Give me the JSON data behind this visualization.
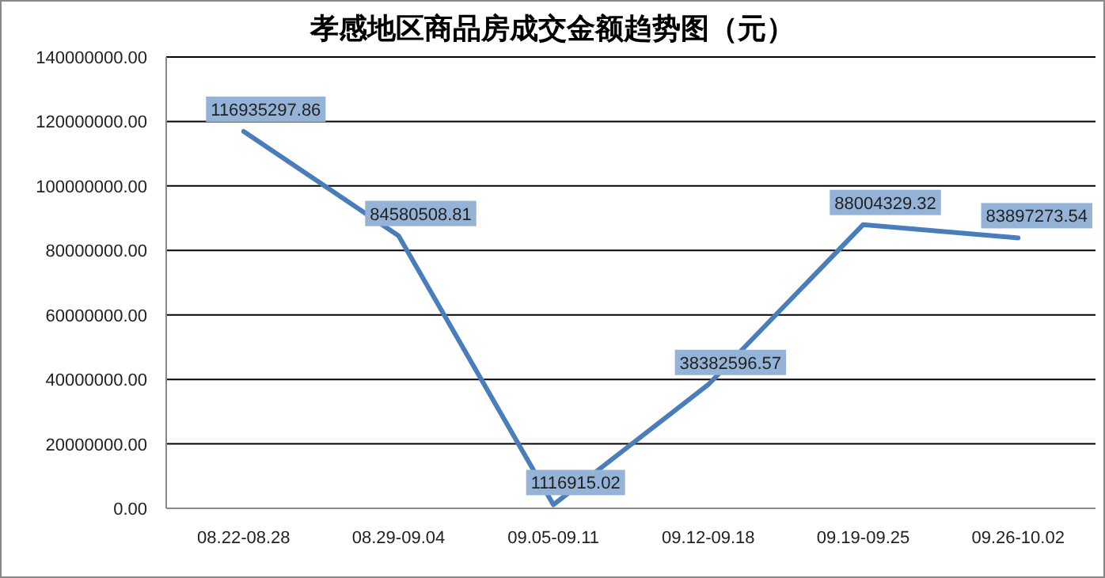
{
  "chart_data": {
    "type": "line",
    "title": "孝感地区商品房成交金额趋势图（元）",
    "categories": [
      "08.22-08.28",
      "08.29-09.04",
      "09.05-09.11",
      "09.12-09.18",
      "09.19-09.25",
      "09.26-10.02"
    ],
    "series": [
      {
        "color": "#4a7ebb",
        "values": [
          116935297.86,
          84580508.81,
          1116915.02,
          38382596.57,
          88004329.32,
          83897273.54
        ]
      }
    ],
    "ylim": [
      0,
      140000000
    ],
    "yticks": [
      {
        "value": 0,
        "label": "0.00"
      },
      {
        "value": 20000000,
        "label": "20000000.00"
      },
      {
        "value": 40000000,
        "label": "40000000.00"
      },
      {
        "value": 60000000,
        "label": "60000000.00"
      },
      {
        "value": 80000000,
        "label": "80000000.00"
      },
      {
        "value": 100000000,
        "label": "100000000.00"
      },
      {
        "value": 120000000,
        "label": "120000000.00"
      },
      {
        "value": 140000000,
        "label": "140000000.00"
      }
    ],
    "grid": "y",
    "data_labels": true,
    "marker": "none",
    "line_style": "solid"
  }
}
